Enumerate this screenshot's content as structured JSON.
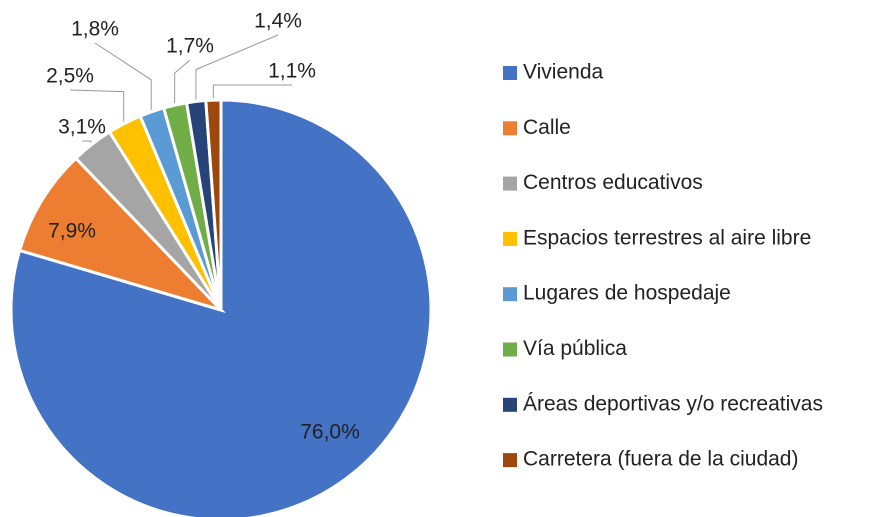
{
  "chart_data": {
    "type": "pie",
    "categories": [
      "Vivienda",
      "Calle",
      "Centros educativos",
      "Espacios terrestres al aire libre",
      "Lugares de hospedaje",
      "Vía pública",
      "Áreas deportivas y/o recreativas",
      "Carretera (fuera de la ciudad)"
    ],
    "values": [
      76.0,
      7.9,
      3.1,
      2.5,
      1.8,
      1.7,
      1.4,
      1.1
    ],
    "value_labels": [
      "76,0%",
      "7,9%",
      "3,1%",
      "2,5%",
      "1,8%",
      "1,7%",
      "1,4%",
      "1,1%"
    ],
    "colors": [
      "#4472c4",
      "#ed7d31",
      "#a5a5a5",
      "#ffc000",
      "#5b9bd5",
      "#70ad47",
      "#264478",
      "#9e480e"
    ],
    "legend": "right"
  }
}
